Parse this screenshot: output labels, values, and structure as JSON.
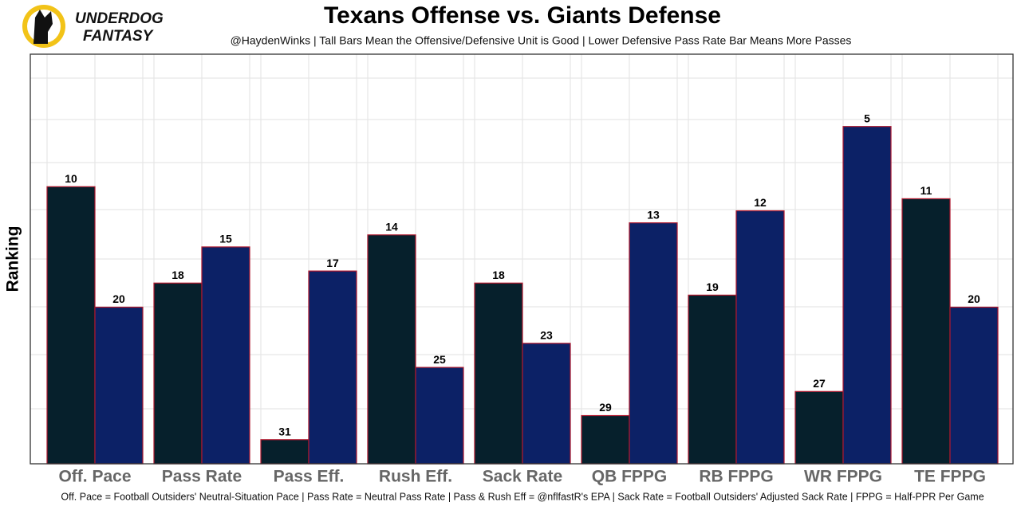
{
  "logo": {
    "line1": "UNDERDOG",
    "line2": "FANTASY"
  },
  "chart_data": {
    "type": "bar",
    "title": "Texans Offense vs. Giants Defense",
    "subtitle": "@HaydenWinks | Tall Bars Mean the Offensive/Defensive Unit is Good | Lower Defensive Pass Rate Bar Means More Passes",
    "y_label": "Ranking",
    "footnote": "Off. Pace = Football Outsiders' Neutral-Situation Pace | Pass Rate = Neutral Pass Rate | Pass & Rush Eff = @nflfastR's EPA | Sack Rate = Football Outsiders' Adjusted Sack Rate | FPPG = Half-PPR Per Game",
    "categories": [
      "Off. Pace",
      "Pass Rate",
      "Pass Eff.",
      "Rush Eff.",
      "Sack Rate",
      "QB FPPG",
      "RB FPPG",
      "WR FPPG",
      "TE FPPG"
    ],
    "series": [
      {
        "color": "#06202c",
        "values": [
          10,
          18,
          31,
          14,
          18,
          29,
          19,
          27,
          11
        ]
      },
      {
        "color": "#0c2166",
        "values": [
          20,
          15,
          17,
          25,
          23,
          13,
          12,
          5,
          20
        ]
      }
    ],
    "ylim": [
      33,
      -1
    ],
    "grid": true
  }
}
